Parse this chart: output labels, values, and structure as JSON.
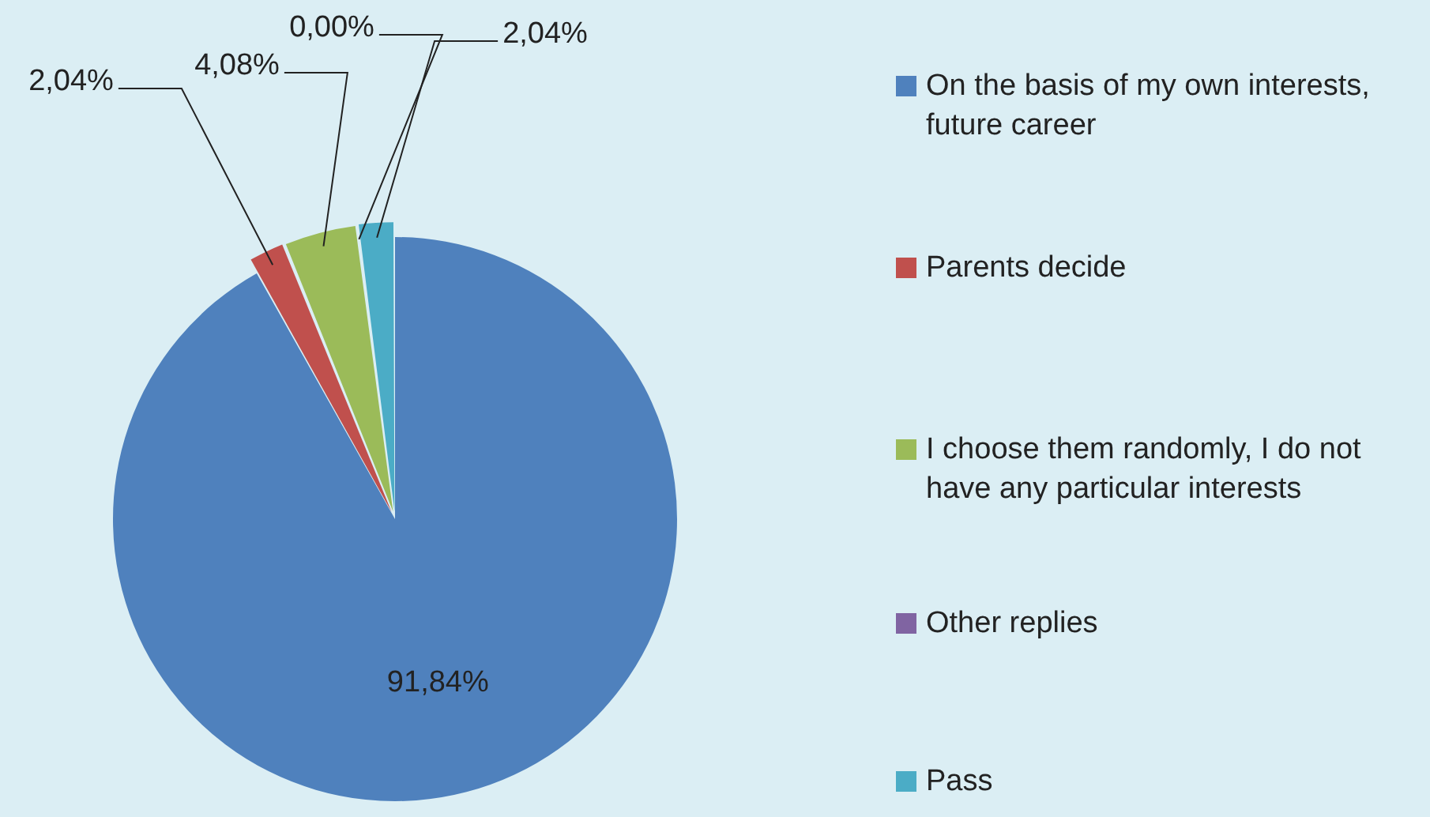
{
  "chart_data": {
    "type": "pie",
    "categories": [
      "On the basis of my own interests, future career",
      "Parents decide",
      "I choose them randomly, I do not have any particular interests",
      "Other replies",
      "Pass"
    ],
    "values": [
      91.84,
      2.04,
      4.08,
      0,
      2.04
    ],
    "colors": [
      "#4f81bd",
      "#c0504d",
      "#9bbb59",
      "#8064a2",
      "#4bacc6"
    ],
    "value_labels": [
      "91,84%",
      "2,04%",
      "4,08%",
      "0,00%",
      "2,04%"
    ],
    "legend": "right"
  }
}
